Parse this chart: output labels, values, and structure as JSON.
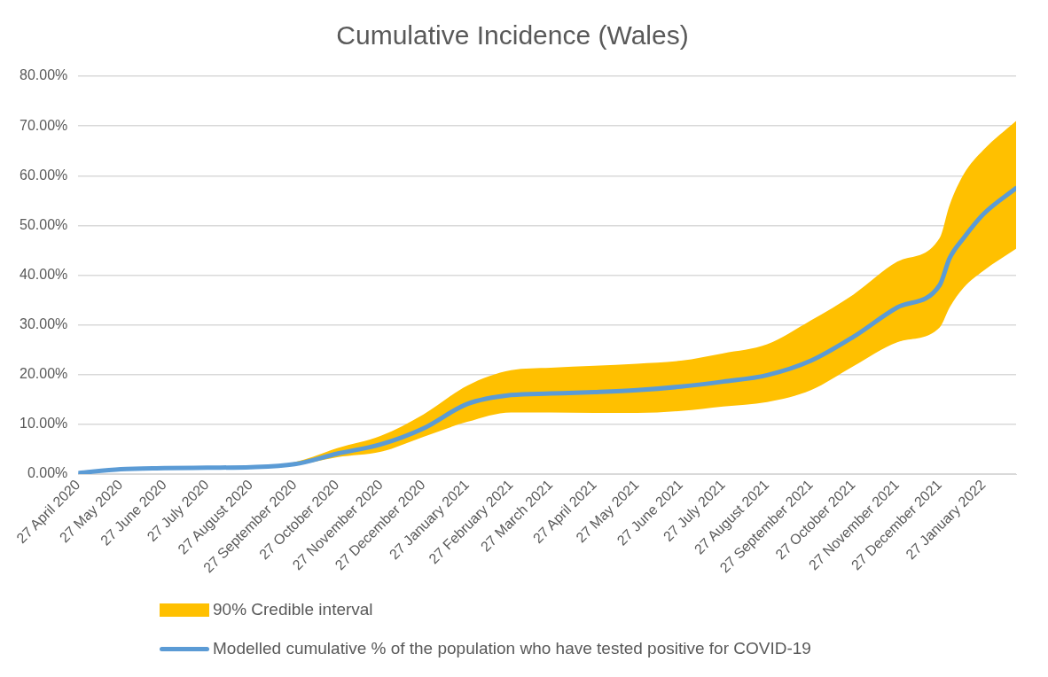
{
  "chart_data": {
    "type": "line",
    "title": "Cumulative Incidence (Wales)",
    "annotations": [
      "90% Credible interval"
    ],
    "x": [
      "2020-04-27",
      "2020-05-27",
      "2020-06-27",
      "2020-07-27",
      "2020-08-27",
      "2020-09-27",
      "2020-10-27",
      "2020-11-27",
      "2020-12-27",
      "2021-01-27",
      "2021-02-27",
      "2021-03-27",
      "2021-04-27",
      "2021-05-27",
      "2021-06-27",
      "2021-07-27",
      "2021-08-27",
      "2021-09-27",
      "2021-10-27",
      "2021-11-27",
      "2021-12-27",
      "2022-01-03",
      "2022-01-13",
      "2022-01-27",
      "2022-02-19"
    ],
    "series": [
      {
        "name": "Modelled cumulative % of the population who have tested positive for COVID-19",
        "type": "line",
        "color": "#5b9bd5",
        "values": [
          0.2,
          1.0,
          1.2,
          1.3,
          1.4,
          2.0,
          4.1,
          6.0,
          9.2,
          14.1,
          15.9,
          16.2,
          16.5,
          16.9,
          17.6,
          18.6,
          19.9,
          22.8,
          27.6,
          33.5,
          38.0,
          43.4,
          47.5,
          52.3,
          57.5
        ],
        "lower": [
          0.2,
          1.0,
          1.2,
          1.3,
          1.4,
          1.8,
          3.4,
          4.5,
          7.5,
          10.5,
          12.4,
          12.4,
          12.3,
          12.3,
          12.7,
          13.6,
          14.5,
          16.9,
          21.7,
          26.5,
          29.5,
          33.5,
          37.5,
          40.9,
          45.3
        ],
        "upper": [
          0.2,
          1.0,
          1.2,
          1.3,
          1.5,
          2.4,
          5.2,
          7.7,
          12.0,
          17.8,
          20.9,
          21.4,
          21.8,
          22.2,
          22.8,
          24.3,
          26.1,
          30.9,
          36.1,
          42.7,
          47.5,
          54.1,
          60.3,
          65.2,
          71.0
        ]
      }
    ],
    "xlim": [
      "2020-04-27",
      "2022-02-19"
    ],
    "xticks": [
      {
        "value": "2020-04-27",
        "label": "27 April 2020"
      },
      {
        "value": "2020-05-27",
        "label": "27 May 2020"
      },
      {
        "value": "2020-06-27",
        "label": "27 June 2020"
      },
      {
        "value": "2020-07-27",
        "label": "27 July 2020"
      },
      {
        "value": "2020-08-27",
        "label": "27 August 2020"
      },
      {
        "value": "2020-09-27",
        "label": "27 September 2020"
      },
      {
        "value": "2020-10-27",
        "label": "27 October 2020"
      },
      {
        "value": "2020-11-27",
        "label": "27 November 2020"
      },
      {
        "value": "2020-12-27",
        "label": "27 December 2020"
      },
      {
        "value": "2021-01-27",
        "label": "27 January 2021"
      },
      {
        "value": "2021-02-27",
        "label": "27 February 2021"
      },
      {
        "value": "2021-03-27",
        "label": "27 March 2021"
      },
      {
        "value": "2021-04-27",
        "label": "27 April 2021"
      },
      {
        "value": "2021-05-27",
        "label": "27 May 2021"
      },
      {
        "value": "2021-06-27",
        "label": "27 June 2021"
      },
      {
        "value": "2021-07-27",
        "label": "27 July 2021"
      },
      {
        "value": "2021-08-27",
        "label": "27 August 2021"
      },
      {
        "value": "2021-09-27",
        "label": "27 September 2021"
      },
      {
        "value": "2021-10-27",
        "label": "27 October 2021"
      },
      {
        "value": "2021-11-27",
        "label": "27 November 2021"
      },
      {
        "value": "2021-12-27",
        "label": "27 December 2021"
      },
      {
        "value": "2022-01-27",
        "label": "27 January 2022"
      }
    ],
    "ylim": [
      0,
      80
    ],
    "yticks": [
      {
        "value": 0,
        "label": "0.00%"
      },
      {
        "value": 10,
        "label": "10.00%"
      },
      {
        "value": 20,
        "label": "20.00%"
      },
      {
        "value": 30,
        "label": "30.00%"
      },
      {
        "value": 40,
        "label": "40.00%"
      },
      {
        "value": 50,
        "label": "50.00%"
      },
      {
        "value": 60,
        "label": "60.00%"
      },
      {
        "value": 70,
        "label": "70.00%"
      },
      {
        "value": 80,
        "label": "80.00%"
      }
    ],
    "grid": "y",
    "legend": "bottom",
    "marker": "none",
    "line_style": "solid"
  }
}
